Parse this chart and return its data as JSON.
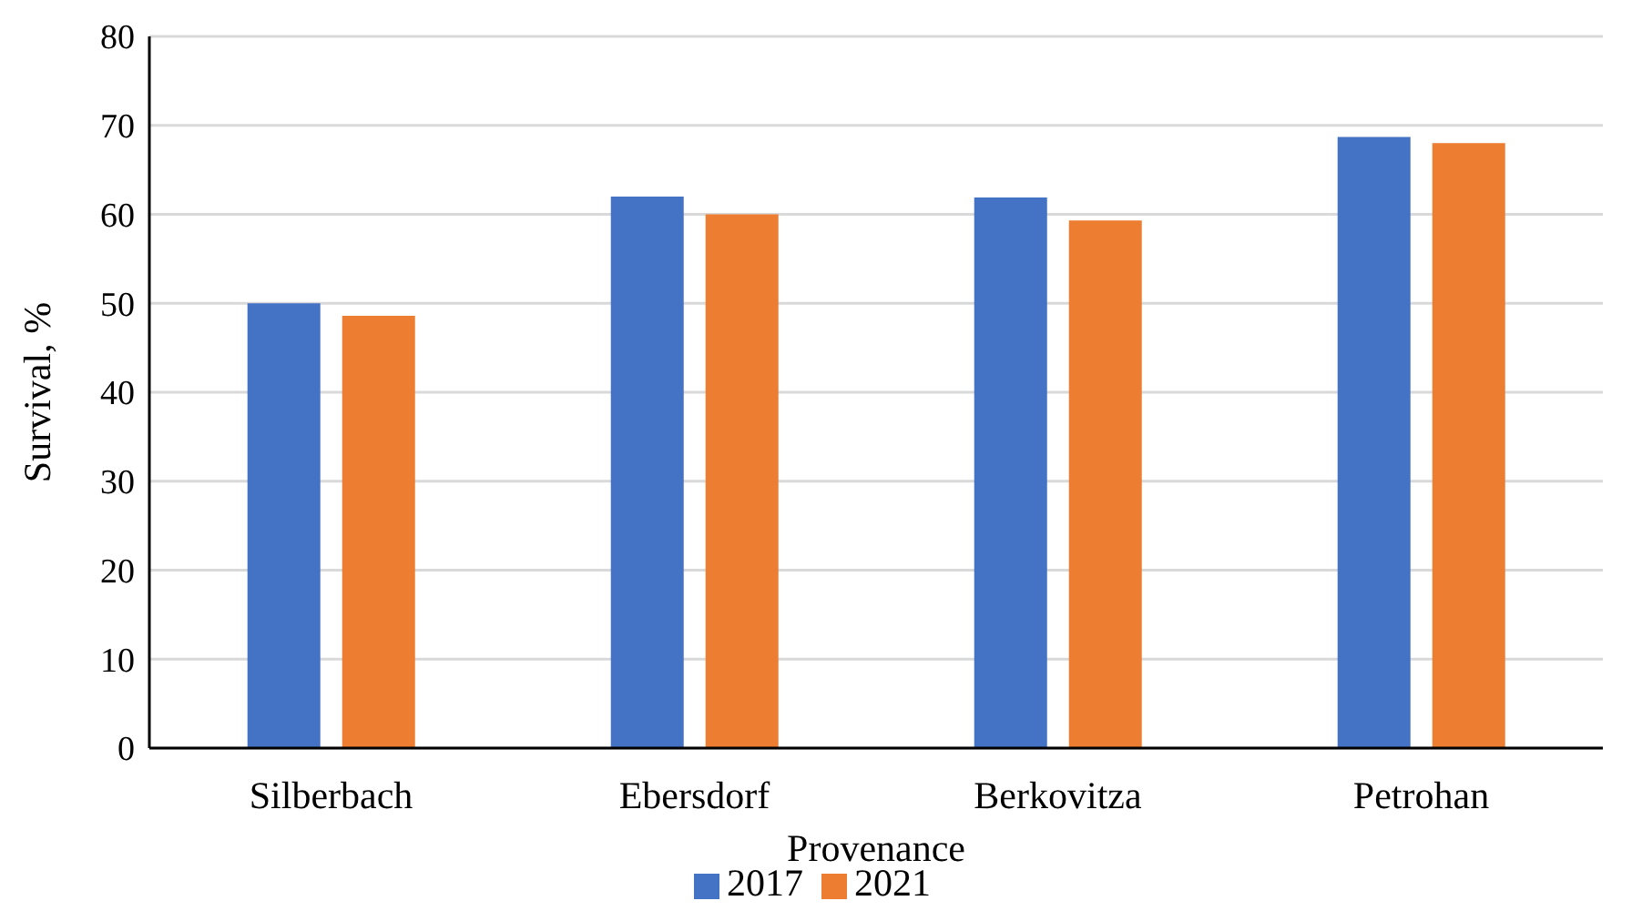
{
  "chart_data": {
    "type": "bar",
    "xlabel": "Provenance",
    "ylabel": "Survival, %",
    "categories": [
      "Silberbach",
      "Ebersdorf",
      "Berkovitza",
      "Petrohan"
    ],
    "series": [
      {
        "name": "2017",
        "color": "#4472c4",
        "values": [
          50,
          62,
          61.9,
          68.7
        ]
      },
      {
        "name": "2021",
        "color": "#ed7d31",
        "values": [
          48.6,
          60,
          59.3,
          68
        ]
      }
    ],
    "ylim": [
      0,
      80
    ],
    "yticks": [
      0,
      10,
      20,
      30,
      40,
      50,
      60,
      70,
      80
    ],
    "grid": "y",
    "legend": "bottom"
  }
}
